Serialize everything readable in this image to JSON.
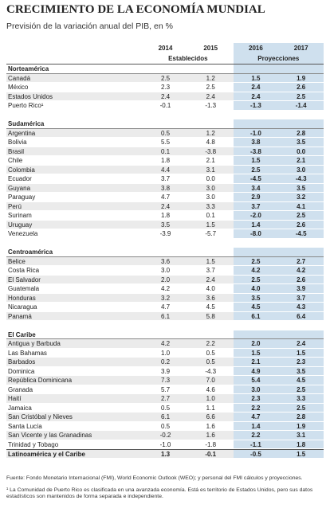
{
  "header": {
    "title": "CRECIMIENTO DE LA ECONOMÍA MUNDIAL",
    "subtitle": "Previsión de la variación anual del PIB, en %"
  },
  "table": {
    "years": [
      "2014",
      "2015",
      "2016",
      "2017"
    ],
    "established": "Establecidos",
    "projections": "Proyecciones",
    "sections": [
      {
        "name": "Norteamérica",
        "rows": [
          {
            "country": "Canadá",
            "values": [
              "2.5",
              "1.2",
              "1.5",
              "1.9"
            ]
          },
          {
            "country": "México",
            "values": [
              "2.3",
              "2.5",
              "2.4",
              "2.6"
            ]
          },
          {
            "country": "Estados Unidos",
            "values": [
              "2.4",
              "2.4",
              "2.4",
              "2.5"
            ]
          },
          {
            "country": "Puerto Rico¹",
            "values": [
              "-0.1",
              "-1.3",
              "-1.3",
              "-1.4"
            ]
          }
        ]
      },
      {
        "name": "Sudamérica",
        "rows": [
          {
            "country": "Argentina",
            "values": [
              "0.5",
              "1.2",
              "-1.0",
              "2.8"
            ]
          },
          {
            "country": "Bolivia",
            "values": [
              "5.5",
              "4.8",
              "3.8",
              "3.5"
            ]
          },
          {
            "country": "Brasil",
            "values": [
              "0.1",
              "-3.8",
              "-3.8",
              "0.0"
            ]
          },
          {
            "country": "Chile",
            "values": [
              "1.8",
              "2.1",
              "1.5",
              "2.1"
            ]
          },
          {
            "country": "Colombia",
            "values": [
              "4.4",
              "3.1",
              "2.5",
              "3.0"
            ]
          },
          {
            "country": "Ecuador",
            "values": [
              "3.7",
              "0.0",
              "-4.5",
              "-4.3"
            ]
          },
          {
            "country": "Guyana",
            "values": [
              "3.8",
              "3.0",
              "3.4",
              "3.5"
            ]
          },
          {
            "country": "Paraguay",
            "values": [
              "4.7",
              "3.0",
              "2.9",
              "3.2"
            ]
          },
          {
            "country": "Perú",
            "values": [
              "2.4",
              "3.3",
              "3.7",
              "4.1"
            ]
          },
          {
            "country": "Surinam",
            "values": [
              "1.8",
              "0.1",
              "-2.0",
              "2.5"
            ]
          },
          {
            "country": "Uruguay",
            "values": [
              "3.5",
              "1.5",
              "1.4",
              "2.6"
            ]
          },
          {
            "country": "Venezuela",
            "values": [
              "-3.9",
              "-5.7",
              "-8.0",
              "-4.5"
            ]
          }
        ]
      },
      {
        "name": "Centroamérica",
        "rows": [
          {
            "country": "Belice",
            "values": [
              "3.6",
              "1.5",
              "2.5",
              "2.7"
            ]
          },
          {
            "country": "Costa Rica",
            "values": [
              "3.0",
              "3.7",
              "4.2",
              "4.2"
            ]
          },
          {
            "country": "El Salvador",
            "values": [
              "2.0",
              "2.4",
              "2.5",
              "2.6"
            ]
          },
          {
            "country": "Guatemala",
            "values": [
              "4.2",
              "4.0",
              "4.0",
              "3.9"
            ]
          },
          {
            "country": "Honduras",
            "values": [
              "3.2",
              "3.6",
              "3.5",
              "3.7"
            ]
          },
          {
            "country": "Nicaragua",
            "values": [
              "4.7",
              "4.5",
              "4.5",
              "4.3"
            ]
          },
          {
            "country": "Panamá",
            "values": [
              "6.1",
              "5.8",
              "6.1",
              "6.4"
            ]
          }
        ]
      },
      {
        "name": "El Caribe",
        "rows": [
          {
            "country": "Antigua y Barbuda",
            "values": [
              "4.2",
              "2.2",
              "2.0",
              "2.4"
            ]
          },
          {
            "country": "Las Bahamas",
            "values": [
              "1.0",
              "0.5",
              "1.5",
              "1.5"
            ]
          },
          {
            "country": "Barbados",
            "values": [
              "0.2",
              "0.5",
              "2.1",
              "2.3"
            ]
          },
          {
            "country": "Dominica",
            "values": [
              "3.9",
              "-4.3",
              "4.9",
              "3.5"
            ]
          },
          {
            "country": "República Dominicana",
            "values": [
              "7.3",
              "7.0",
              "5.4",
              "4.5"
            ]
          },
          {
            "country": "Granada",
            "values": [
              "5.7",
              "4.6",
              "3.0",
              "2.5"
            ]
          },
          {
            "country": "Haití",
            "values": [
              "2.7",
              "1.0",
              "2.3",
              "3.3"
            ]
          },
          {
            "country": "Jamaica",
            "values": [
              "0.5",
              "1.1",
              "2.2",
              "2.5"
            ]
          },
          {
            "country": "San Cristóbal y Nieves",
            "values": [
              "6.1",
              "6.6",
              "4.7",
              "2.8"
            ]
          },
          {
            "country": "Santa Lucía",
            "values": [
              "0.5",
              "1.6",
              "1.4",
              "1.9"
            ]
          },
          {
            "country": "San Vicente y las Granadinas",
            "values": [
              "-0.2",
              "1.6",
              "2.2",
              "3.1"
            ]
          },
          {
            "country": "Trinidad y Tobago",
            "values": [
              "-1.0",
              "-1.8",
              "-1.1",
              "1.8"
            ]
          }
        ]
      }
    ],
    "total": {
      "country": "Latinoamérica y el Caribe",
      "values": [
        "1.3",
        "-0.1",
        "-0.5",
        "1.5"
      ]
    }
  },
  "footnotes": {
    "source": "Fuente: Fondo Monetario Internacional (FMI), World Economic Outlook (WEO); y personal del FMI cálculos y proyecciones.",
    "note": "¹ La Comunidad de Puerto Rico es clasificada en una avanzada economía. Está es territorio de Estados Unidos, pero sus datos estadísticos son mantenidos de forma separada e independiente."
  }
}
